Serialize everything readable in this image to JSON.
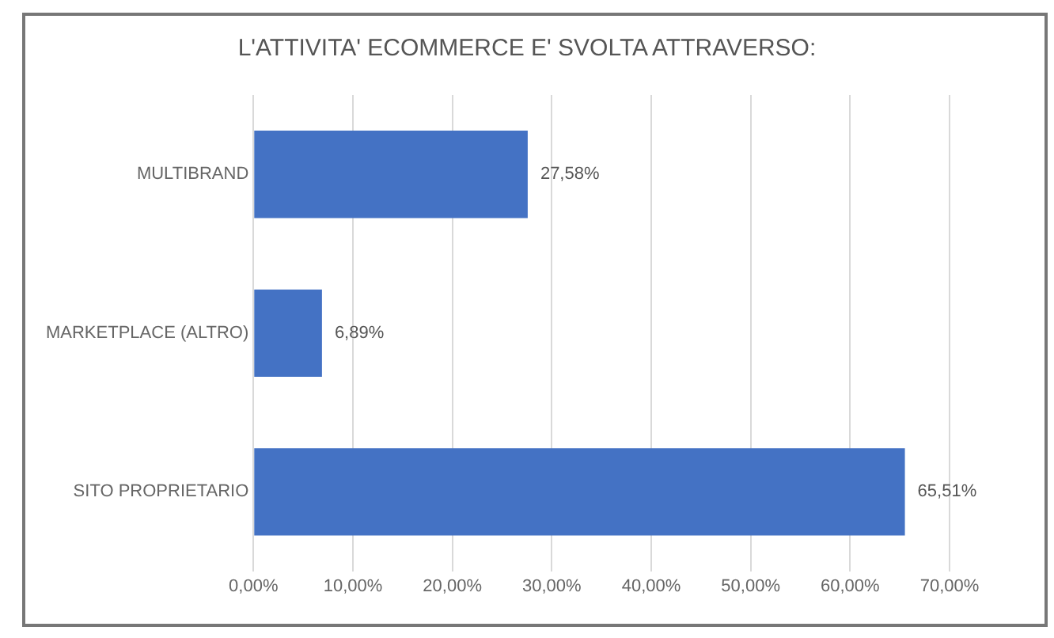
{
  "chart_data": {
    "type": "bar",
    "orientation": "horizontal",
    "title": "L'ATTIVITA' ECOMMERCE E' SVOLTA ATTRAVERSO:",
    "categories": [
      "MULTIBRAND",
      "MARKETPLACE (ALTRO)",
      "SITO PROPRIETARIO"
    ],
    "values": [
      27.58,
      6.89,
      65.51
    ],
    "color": "#4472c4",
    "value_labels": [
      "27,58%",
      "6,89%",
      "65,51%"
    ],
    "xlim": [
      0,
      70
    ],
    "xticks": [
      {
        "value": 0,
        "label": "0,00%"
      },
      {
        "value": 10,
        "label": "10,00%"
      },
      {
        "value": 20,
        "label": "20,00%"
      },
      {
        "value": 30,
        "label": "30,00%"
      },
      {
        "value": 40,
        "label": "40,00%"
      },
      {
        "value": 50,
        "label": "50,00%"
      },
      {
        "value": 60,
        "label": "60,00%"
      },
      {
        "value": 70,
        "label": "70,00%"
      }
    ],
    "grid": "x",
    "legend": false
  }
}
